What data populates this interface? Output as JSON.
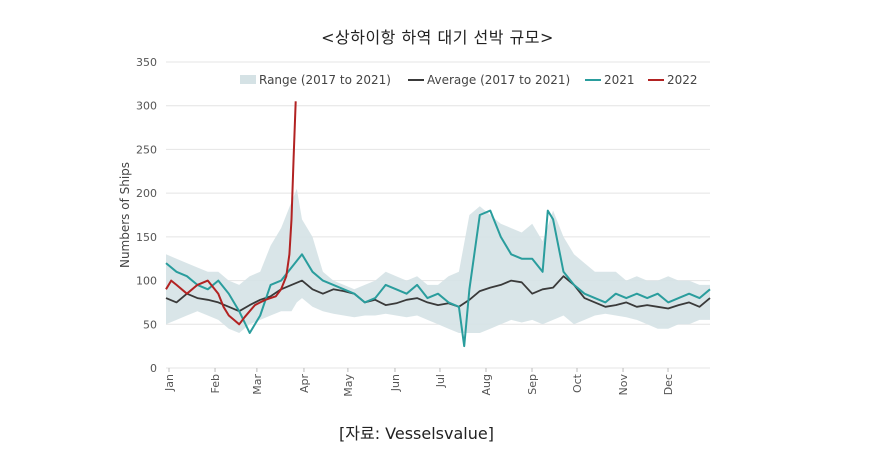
{
  "title": "<상하이항 하역 대기 선박 규모>",
  "source_note": "[자료: Vesselsvalue]",
  "chart_data": {
    "type": "line",
    "ylabel": "Numbers of Ships",
    "ylim": [
      0,
      350
    ],
    "yticks": [
      0,
      50,
      100,
      150,
      200,
      250,
      300,
      350
    ],
    "x_unit": "week of year",
    "xlim": [
      0,
      52
    ],
    "months": [
      "Jan",
      "Feb",
      "Mar",
      "Apr",
      "May",
      "Jun",
      "Jul",
      "Aug",
      "Sep",
      "Oct",
      "Nov",
      "Dec"
    ],
    "month_start_weeks": [
      0,
      4.4,
      8.4,
      12.9,
      17.1,
      21.6,
      25.9,
      30.3,
      34.7,
      39.0,
      43.4,
      47.7
    ],
    "grid": true,
    "legend_position": "top",
    "colors": {
      "range": "#d5e2e5",
      "average": "#3a3a3a",
      "y2021": "#2a9d9d",
      "y2022": "#b22222"
    },
    "series": [
      {
        "name": "Range (2017 to 2021)",
        "kind": "band",
        "x": [
          0,
          1,
          2,
          3,
          4,
          5,
          6,
          7,
          8,
          9,
          10,
          11,
          12,
          12.5,
          13,
          14,
          15,
          16,
          17,
          18,
          19,
          20,
          21,
          22,
          23,
          24,
          25,
          26,
          27,
          28,
          29,
          30,
          31,
          32,
          33,
          34,
          35,
          36,
          37,
          38,
          39,
          40,
          41,
          42,
          43,
          44,
          45,
          46,
          47,
          48,
          49,
          50,
          51,
          52
        ],
        "low": [
          50,
          55,
          60,
          65,
          60,
          55,
          45,
          40,
          50,
          55,
          60,
          65,
          65,
          75,
          80,
          70,
          65,
          62,
          60,
          58,
          60,
          60,
          62,
          60,
          58,
          60,
          55,
          50,
          45,
          40,
          40,
          40,
          45,
          50,
          55,
          52,
          55,
          50,
          55,
          60,
          50,
          55,
          60,
          62,
          60,
          58,
          55,
          50,
          45,
          45,
          50,
          50,
          55,
          55
        ],
        "high": [
          130,
          125,
          120,
          115,
          110,
          110,
          100,
          95,
          105,
          110,
          140,
          160,
          190,
          205,
          170,
          150,
          110,
          100,
          95,
          90,
          95,
          100,
          110,
          105,
          100,
          105,
          95,
          95,
          105,
          110,
          175,
          185,
          175,
          165,
          160,
          155,
          165,
          145,
          180,
          150,
          130,
          120,
          110,
          110,
          110,
          100,
          105,
          100,
          100,
          105,
          100,
          100,
          95,
          95
        ]
      },
      {
        "name": "Average (2017 to 2021)",
        "kind": "line",
        "x": [
          0,
          1,
          2,
          3,
          4,
          5,
          6,
          7,
          8,
          9,
          10,
          11,
          12,
          13,
          14,
          15,
          16,
          17,
          18,
          19,
          20,
          21,
          22,
          23,
          24,
          25,
          26,
          27,
          28,
          29,
          30,
          31,
          32,
          33,
          34,
          35,
          36,
          37,
          38,
          39,
          40,
          41,
          42,
          43,
          44,
          45,
          46,
          47,
          48,
          49,
          50,
          51,
          52
        ],
        "y": [
          80,
          75,
          85,
          80,
          78,
          75,
          70,
          65,
          72,
          78,
          82,
          90,
          95,
          100,
          90,
          85,
          90,
          88,
          85,
          75,
          78,
          72,
          74,
          78,
          80,
          75,
          72,
          74,
          70,
          78,
          88,
          92,
          95,
          100,
          98,
          85,
          90,
          92,
          105,
          95,
          80,
          75,
          70,
          72,
          75,
          70,
          72,
          70,
          68,
          72,
          75,
          70,
          80
        ]
      },
      {
        "name": "2021",
        "kind": "line",
        "x": [
          0,
          1,
          2,
          3,
          4,
          5,
          6,
          7,
          8,
          9,
          10,
          11,
          12,
          13,
          14,
          15,
          16,
          17,
          18,
          19,
          20,
          21,
          22,
          23,
          24,
          25,
          26,
          27,
          28,
          28.5,
          29,
          30,
          31,
          32,
          33,
          34,
          35,
          36,
          36.5,
          37,
          38,
          39,
          40,
          41,
          42,
          43,
          44,
          45,
          46,
          47,
          48,
          49,
          50,
          51,
          52
        ],
        "y": [
          120,
          110,
          105,
          95,
          90,
          100,
          85,
          65,
          40,
          60,
          95,
          100,
          115,
          130,
          110,
          100,
          95,
          90,
          85,
          75,
          80,
          95,
          90,
          85,
          95,
          80,
          85,
          75,
          70,
          25,
          90,
          175,
          180,
          150,
          130,
          125,
          125,
          110,
          180,
          170,
          110,
          95,
          85,
          80,
          75,
          85,
          80,
          85,
          80,
          85,
          75,
          80,
          85,
          80,
          90
        ]
      },
      {
        "name": "2022",
        "kind": "line",
        "x": [
          0,
          0.5,
          1,
          2,
          3,
          4,
          5,
          5.5,
          6,
          6.5,
          7,
          7.5,
          8,
          8.5,
          9,
          9.5,
          10,
          10.5,
          11,
          11.5,
          11.8,
          12,
          12.2,
          12.4
        ],
        "y": [
          90,
          100,
          95,
          85,
          95,
          100,
          85,
          70,
          60,
          55,
          50,
          58,
          65,
          72,
          75,
          78,
          80,
          82,
          90,
          105,
          130,
          170,
          240,
          305
        ]
      }
    ]
  }
}
